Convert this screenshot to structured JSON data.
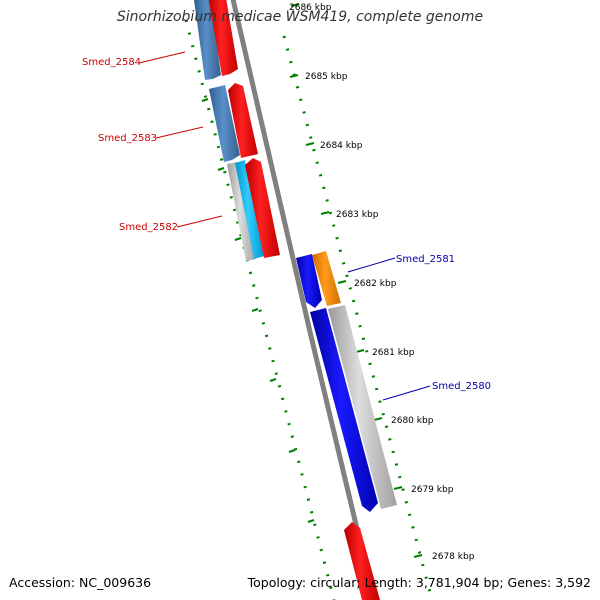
{
  "title": "Sinorhizobium medicae WSM419, complete genome",
  "footer": {
    "accession": "Accession: NC_009636",
    "topology": "Topology: circular; Length: 3,781,904 bp; Genes: 3,592"
  },
  "ticks": [
    "2686 kbp",
    "2685 kbp",
    "2684 kbp",
    "2683 kbp",
    "2682 kbp",
    "2681 kbp",
    "2680 kbp",
    "2679 kbp",
    "2678 kbp"
  ],
  "genes": {
    "smed_2584": "Smed_2584",
    "smed_2583": "Smed_2583",
    "smed_2582": "Smed_2582",
    "smed_2581": "Smed_2581",
    "smed_2580": "Smed_2580"
  },
  "colors": {
    "red_label": "#cc0000",
    "blue_label": "#0000aa",
    "forward": "#ff0000",
    "reverse": "#0000ee",
    "steel": "#4682b4",
    "sky": "#00bfff",
    "orange": "#ff8c00",
    "grey": "#bbbbbb",
    "backbone": "#808080",
    "tick": "#008000"
  }
}
